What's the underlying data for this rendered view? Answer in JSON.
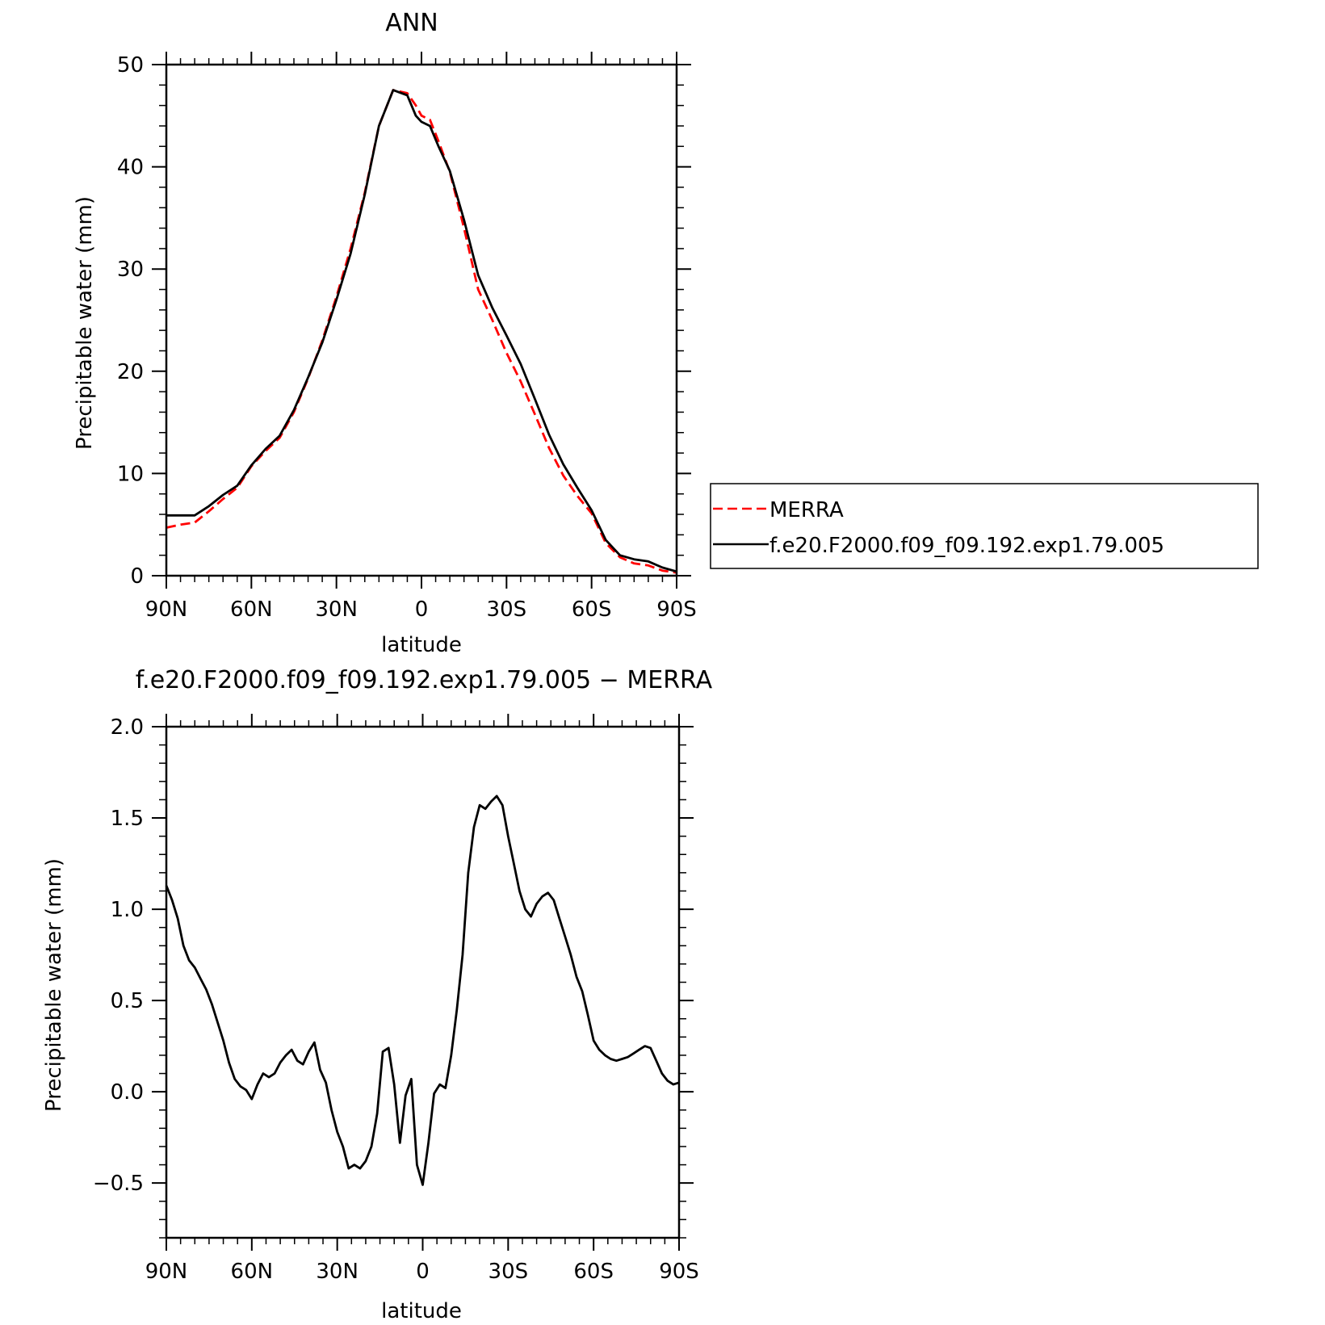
{
  "chart_data": [
    {
      "type": "line",
      "title": "ANN",
      "xlabel": "latitude",
      "ylabel": "Precipitable water (mm)",
      "xlim": [
        90,
        -90
      ],
      "ylim": [
        0,
        50
      ],
      "x_ticks": [
        90,
        60,
        30,
        0,
        -30,
        -60,
        -90
      ],
      "x_tick_labels": [
        "90N",
        "60N",
        "30N",
        "0",
        "30S",
        "60S",
        "90S"
      ],
      "y_ticks": [
        0,
        10,
        20,
        30,
        40,
        50
      ],
      "y_tick_labels": [
        "0",
        "10",
        "20",
        "30",
        "40",
        "50"
      ],
      "legend": "outside-right",
      "series": [
        {
          "name": "MERRA",
          "color": "#ff0000",
          "dash": "dashed",
          "x": [
            90,
            85,
            80,
            75,
            70,
            65,
            60,
            55,
            50,
            45,
            40,
            35,
            30,
            25,
            20,
            15,
            10,
            5,
            2,
            0,
            -3,
            -6,
            -10,
            -15,
            -20,
            -25,
            -30,
            -35,
            -40,
            -45,
            -50,
            -55,
            -60,
            -65,
            -70,
            -75,
            -80,
            -85,
            -90
          ],
          "y": [
            4.7,
            5.0,
            5.2,
            6.3,
            7.5,
            8.6,
            10.7,
            12.2,
            13.5,
            16.0,
            19.3,
            23.0,
            27.3,
            32.0,
            37.5,
            44.0,
            47.5,
            47.2,
            46.0,
            45.0,
            44.6,
            42.5,
            39.5,
            34.0,
            28.0,
            25.0,
            21.8,
            19.0,
            15.8,
            12.5,
            9.8,
            7.8,
            6.1,
            3.2,
            1.8,
            1.2,
            1.0,
            0.5,
            0.3
          ]
        },
        {
          "name": "f.e20.F2000.f09_f09.192.exp1.79.005",
          "color": "#000000",
          "dash": "solid",
          "x": [
            90,
            85,
            80,
            75,
            70,
            65,
            60,
            55,
            50,
            45,
            40,
            35,
            30,
            25,
            20,
            15,
            10,
            5,
            2,
            0,
            -3,
            -6,
            -10,
            -15,
            -20,
            -25,
            -30,
            -35,
            -40,
            -45,
            -50,
            -55,
            -60,
            -65,
            -70,
            -75,
            -80,
            -85,
            -90
          ],
          "y": [
            5.9,
            5.9,
            5.9,
            6.8,
            7.9,
            8.8,
            10.8,
            12.4,
            13.7,
            16.2,
            19.4,
            22.8,
            27.0,
            31.5,
            37.3,
            44.0,
            47.5,
            47.0,
            45.0,
            44.4,
            44.0,
            42.0,
            39.6,
            34.8,
            29.4,
            26.2,
            23.5,
            20.7,
            17.3,
            13.8,
            10.9,
            8.6,
            6.4,
            3.5,
            2.0,
            1.6,
            1.4,
            0.8,
            0.4
          ]
        }
      ]
    },
    {
      "type": "line",
      "title": "f.e20.F2000.f09_f09.192.exp1.79.005 − MERRA",
      "xlabel": "latitude",
      "ylabel": "Precipitable water (mm)",
      "xlim": [
        90,
        -90
      ],
      "ylim": [
        -0.8,
        2.0
      ],
      "x_ticks": [
        90,
        60,
        30,
        0,
        -30,
        -60,
        -90
      ],
      "x_tick_labels": [
        "90N",
        "60N",
        "30N",
        "0",
        "30S",
        "60S",
        "90S"
      ],
      "y_ticks": [
        -0.5,
        0.0,
        0.5,
        1.0,
        1.5,
        2.0
      ],
      "y_tick_labels": [
        "−0.5",
        "0.0",
        "0.5",
        "1.0",
        "1.5",
        "2.0"
      ],
      "series": [
        {
          "color": "#000000",
          "x": [
            90,
            88,
            86,
            84,
            82,
            80,
            78,
            76,
            74,
            72,
            70,
            68,
            66,
            64,
            62,
            60,
            58,
            56,
            54,
            52,
            50,
            48,
            46,
            44,
            42,
            40,
            38,
            36,
            34,
            32,
            30,
            28,
            26,
            24,
            22,
            20,
            18,
            16,
            14,
            12,
            10,
            8,
            6,
            4,
            2,
            0,
            -2,
            -4,
            -6,
            -8,
            -10,
            -12,
            -14,
            -16,
            -18,
            -20,
            -22,
            -24,
            -26,
            -28,
            -30,
            -32,
            -34,
            -36,
            -38,
            -40,
            -42,
            -44,
            -46,
            -48,
            -50,
            -52,
            -54,
            -56,
            -58,
            -60,
            -62,
            -64,
            -66,
            -68,
            -70,
            -72,
            -74,
            -76,
            -78,
            -80,
            -82,
            -84,
            -86,
            -88,
            -90
          ],
          "y": [
            1.13,
            1.05,
            0.95,
            0.8,
            0.72,
            0.68,
            0.62,
            0.56,
            0.48,
            0.38,
            0.28,
            0.16,
            0.07,
            0.03,
            0.01,
            -0.04,
            0.04,
            0.1,
            0.08,
            0.1,
            0.16,
            0.2,
            0.23,
            0.17,
            0.15,
            0.22,
            0.27,
            0.12,
            0.05,
            -0.1,
            -0.22,
            -0.3,
            -0.42,
            -0.4,
            -0.42,
            -0.38,
            -0.3,
            -0.12,
            0.22,
            0.24,
            0.04,
            -0.28,
            -0.02,
            0.07,
            -0.4,
            -0.51,
            -0.28,
            -0.01,
            0.04,
            0.02,
            0.2,
            0.45,
            0.75,
            1.2,
            1.45,
            1.57,
            1.55,
            1.59,
            1.62,
            1.57,
            1.4,
            1.25,
            1.1,
            1.0,
            0.96,
            1.03,
            1.07,
            1.09,
            1.05,
            0.95,
            0.85,
            0.75,
            0.63,
            0.55,
            0.42,
            0.28,
            0.23,
            0.2,
            0.18,
            0.17,
            0.18,
            0.19,
            0.21,
            0.23,
            0.25,
            0.24,
            0.17,
            0.1,
            0.06,
            0.04,
            0.05
          ]
        }
      ]
    }
  ]
}
